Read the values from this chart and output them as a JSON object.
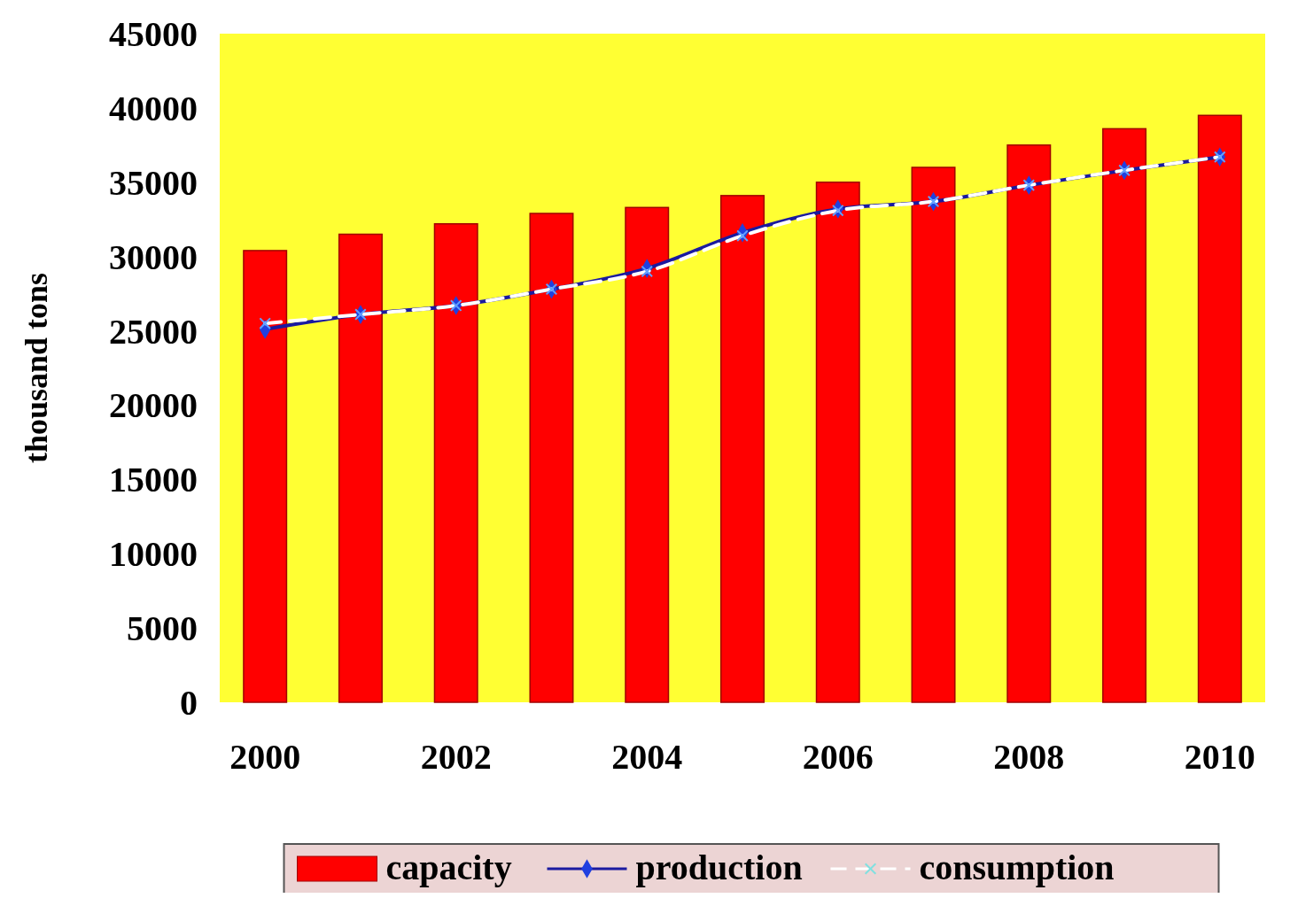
{
  "chart_data": {
    "type": "bar",
    "ylabel": "thousand tons",
    "categories": [
      "2000",
      null,
      "2002",
      null,
      "2004",
      null,
      "2006",
      null,
      "2008",
      null,
      "2010"
    ],
    "ylim": [
      0,
      45000
    ],
    "yticks": [
      0,
      5000,
      10000,
      15000,
      20000,
      25000,
      30000,
      35000,
      40000,
      45000
    ],
    "legend": "bottom",
    "grid": false,
    "series": [
      {
        "name": "capacity",
        "color": "#ff0000",
        "values": [
          30400,
          31500,
          32200,
          32900,
          33300,
          34100,
          35000,
          36000,
          37500,
          38600,
          39500
        ]
      },
      {
        "name": "production",
        "type": "line",
        "color": "#1a1aa0",
        "marker": "diamond",
        "line_style": "solid",
        "values": [
          25100,
          26100,
          26700,
          27800,
          29200,
          31600,
          33200,
          33700,
          34800,
          35800,
          36700
        ]
      },
      {
        "name": "consumption",
        "type": "line",
        "color": "#ffffff",
        "marker": "cross",
        "line_style": "dashed",
        "values": [
          25500,
          26100,
          26700,
          27800,
          29000,
          31400,
          33100,
          33700,
          34800,
          35800,
          36700
        ]
      }
    ]
  }
}
